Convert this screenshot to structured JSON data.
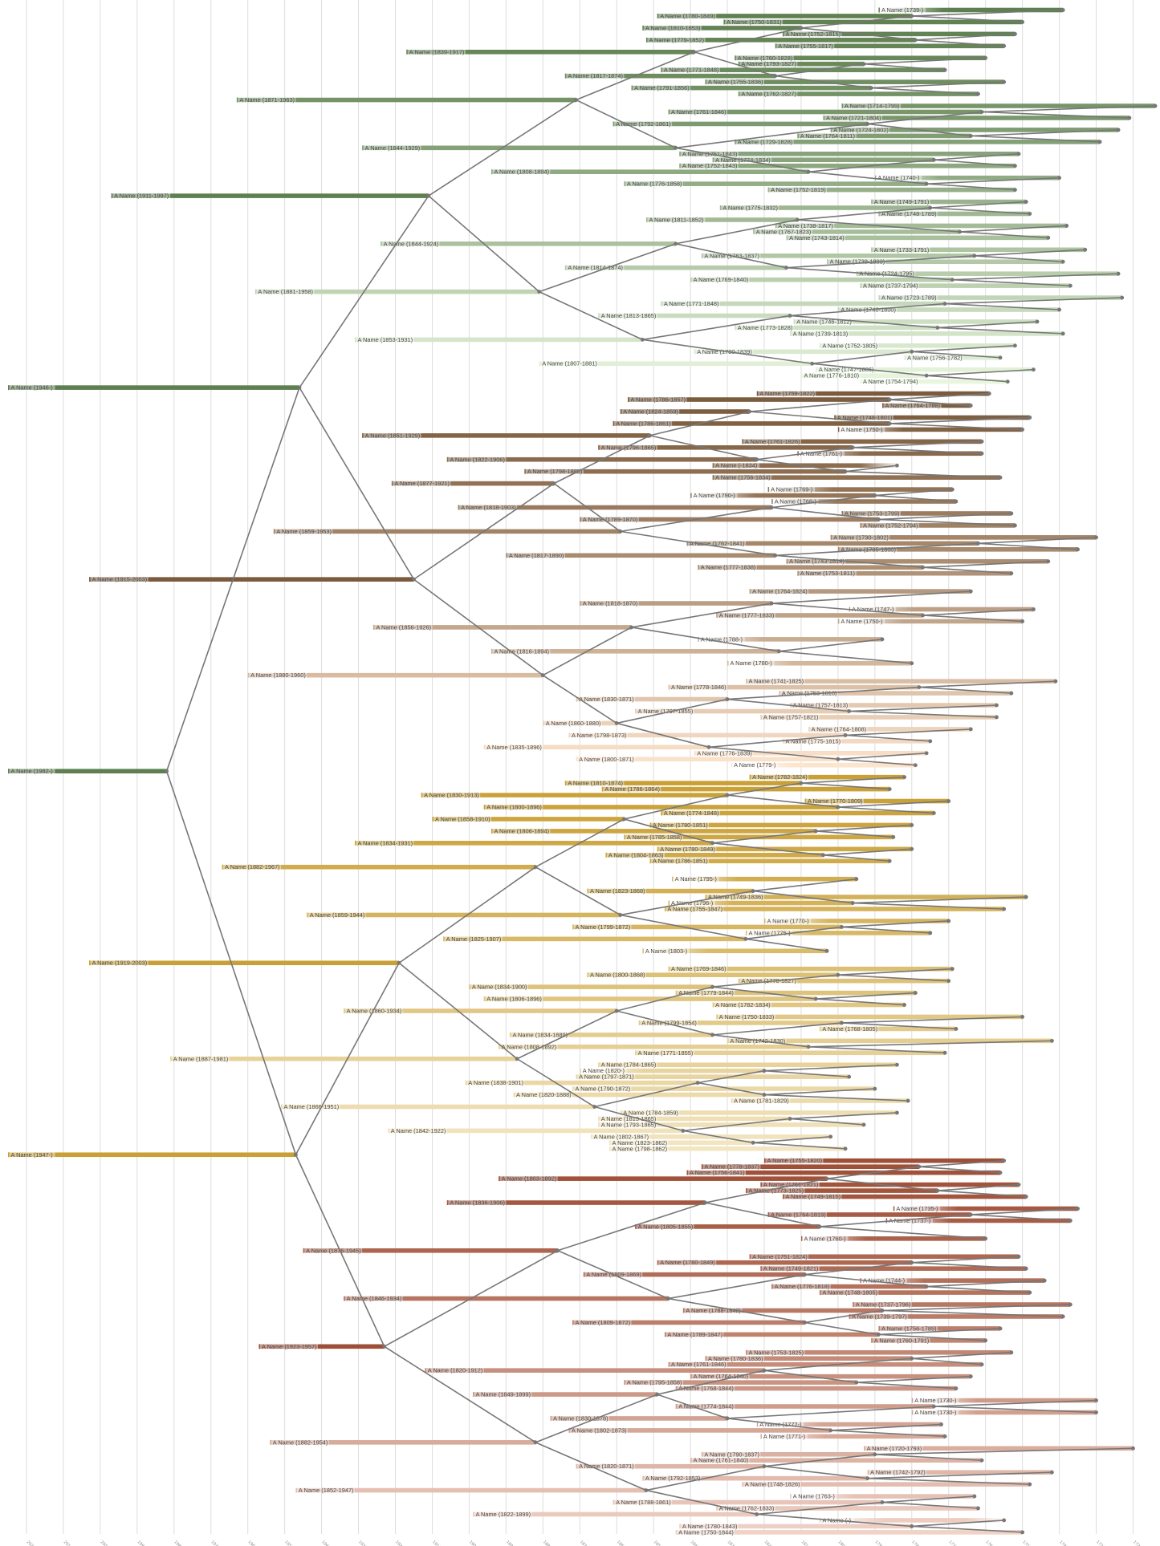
{
  "chart_data": {
    "type": "genealogy-timeline",
    "title": "",
    "axis": {
      "direction": "reversed (recent on the left)",
      "range": [
        2020,
        1720
      ],
      "ticks": [
        "2020",
        "2010",
        "2000",
        "1990",
        "1980",
        "1970",
        "1960",
        "1950",
        "1940",
        "1930",
        "1920",
        "1910",
        "1900",
        "1890",
        "1880",
        "1870",
        "1860",
        "1850",
        "1840",
        "1830",
        "1820",
        "1810",
        "1800",
        "1790",
        "1780",
        "1770",
        "1760",
        "1750",
        "1740",
        "1730",
        "1720"
      ],
      "grid": true
    },
    "branch_colors": {
      "paternal_paternal": [
        "#5e7f4f",
        "#e8f6de"
      ],
      "paternal_maternal": [
        "#7b5b3d",
        "#fde4cc"
      ],
      "maternal_paternal": [
        "#c9a035",
        "#f3e6c3"
      ],
      "maternal_maternal": [
        "#9f4f37",
        "#f0d2c6"
      ]
    },
    "link_color": "#777777",
    "people": [
      "A Name (1739-)",
      "A Name (1780-1849)",
      "A Name (1750-1831)",
      "A Name (1810-1853)",
      "A Name (1752-1815)",
      "A Name (1779-1852)",
      "A Name (1755-1817)",
      "A Name (1839-1917)",
      "A Name (1760-1828)",
      "A Name (1793-1827)",
      "A Name (1771-1848)",
      "A Name (1817-1874)",
      "A Name (1755-1836)",
      "A Name (1791-1856)",
      "A Name (1762-1827)",
      "A Name (1871-1963)",
      "A Name (1714-1799)",
      "A Name (1761-1846)",
      "A Name (1721-1804)",
      "A Name (1792-1861)",
      "A Name (1724-1802)",
      "A Name (1764-1811)",
      "A Name (1729-1828)",
      "A Name (1844-1929)",
      "A Name (1751-1843)",
      "A Name (1774-1834)",
      "A Name (1752-1843)",
      "A Name (1808-1894)",
      "A Name (1740-)",
      "A Name (1776-1858)",
      "A Name (1752-1819)",
      "A Name (1911-1997)",
      "A Name (1749-1791)",
      "A Name (1775-1832)",
      "A Name (1748-1789)",
      "A Name (1811-1852)",
      "A Name (1738-1817)",
      "A Name (1767-1823)",
      "A Name (1743-1814)",
      "A Name (1844-1924)",
      "A Name (1733-1791)",
      "A Name (1763-1837)",
      "A Name (1739-1803)",
      "A Name (1814-1874)",
      "A Name (1724-1795)",
      "A Name (1769-1840)",
      "A Name (1737-1794)",
      "A Name (1881-1958)",
      "A Name (1723-1789)",
      "A Name (1771-1848)",
      "A Name (1740-1800)",
      "A Name (1813-1865)",
      "A Name (1746-1812)",
      "A Name (1773-1828)",
      "A Name (1739-1813)",
      "A Name (1853-1931)",
      "A Name (1752-1805)",
      "A Name (1780-1839)",
      "A Name (1756-1782)",
      "A Name (1807-1881)",
      "A Name (1747-1806)",
      "A Name (1776-1810)",
      "A Name (1754-1794)",
      "A Name (1946-)",
      "A Name (1759-1822)",
      "A Name (1786-1857)",
      "A Name (1764-1788)",
      "A Name (1824-1859)",
      "A Name (1748-1801)",
      "A Name (1786-1861)",
      "A Name (1750-)",
      "A Name (1851-1929)",
      "A Name (1761-1826)",
      "A Name (1796-1865)",
      "A Name (1761-)",
      "A Name (1822-1906)",
      "A Name (-1834)",
      "A Name (1798-1885)",
      "A Name (1756-1834)",
      "A Name (1877-1921)",
      "A Name (1769-)",
      "A Name (1790-)",
      "A Name (1768-)",
      "A Name (1818-1903)",
      "A Name (1753-1799)",
      "A Name (1789-1870)",
      "A Name (1752-1794)",
      "A Name (1859-1953)",
      "A Name (1730-1802)",
      "A Name (1762-1841)",
      "A Name (1735-1800)",
      "A Name (1817-1890)",
      "A Name (1743-1814)",
      "A Name (1777-1838)",
      "A Name (1753-1811)",
      "A Name (1915-2003)",
      null,
      "A Name (1764-1824)",
      null,
      "A Name (1818-1870)",
      "A Name (1747-)",
      "A Name (1777-1833)",
      "A Name (1750-)",
      "A Name (1856-1926)",
      null,
      "A Name (1788-)",
      null,
      "A Name (1816-1894)",
      null,
      "A Name (1780-)",
      null,
      "A Name (1880-1960)",
      "A Name (1741-1825)",
      "A Name (1778-1846)",
      "A Name (1753-1816)",
      "A Name (1830-1871)",
      "A Name (1757-1813)",
      "A Name (1797-1855)",
      "A Name (1757-1821)",
      "A Name (1860-1880)",
      "A Name (1764-1808)",
      "A Name (1798-1873)",
      "A Name (1775-1815)",
      "A Name (1835-1896)",
      "A Name (1776-1839)",
      "A Name (1800-1871)",
      "A Name (1779-)",
      "A Name (1982-)",
      "A Name (1782-1824)",
      "A Name (1810-1874)",
      "A Name (1786-1864)",
      "A Name (1830-1913)",
      "A Name (1770-1809)",
      "A Name (1800-1896)",
      "A Name (1774-1848)",
      "A Name (1858-1910)",
      "A Name (1780-1851)",
      "A Name (1806-1894)",
      "A Name (1785-1858)",
      "A Name (1834-1931)",
      "A Name (1780-1849)",
      "A Name (1804-1863)",
      "A Name (1786-1851)",
      "A Name (1882-1967)",
      null,
      "A Name (1795-)",
      null,
      "A Name (1823-1868)",
      "A Name (1749-1836)",
      "A Name (1796-)",
      "A Name (1755-1847)",
      "A Name (1859-1944)",
      "A Name (1770-)",
      "A Name (1799-1872)",
      "A Name (1775-)",
      "A Name (1825-1907)",
      null,
      "A Name (1803-)",
      null,
      "A Name (1919-2003)",
      "A Name (1769-1846)",
      "A Name (1800-1868)",
      "A Name (1770-1827)",
      "A Name (1834-1900)",
      "A Name (1779-1844)",
      "A Name (1806-1896)",
      "A Name (1782-1834)",
      "A Name (1860-1934)",
      "A Name (1750-1833)",
      "A Name (1799-1854)",
      "A Name (1768-1805)",
      "A Name (1834-1889)",
      "A Name (1742-1830)",
      "A Name (1808-1892)",
      "A Name (1771-1855)",
      "A Name (1887-1981)",
      "A Name (1784-1865)",
      "A Name (1820-)",
      "A Name (1797-1871)",
      "A Name (1838-1901)",
      "A Name (1790-1872)",
      "A Name (1820-1888)",
      "A Name (1781-1829)",
      "A Name (1866-1951)",
      "A Name (1784-1859)",
      "A Name (1813-1865)",
      "A Name (1793-1865)",
      "A Name (1842-1922)",
      "A Name (1802-1867)",
      "A Name (1823-1862)",
      "A Name (1798-1862)",
      "A Name (1947-)",
      "A Name (1755-1820)",
      "A Name (1778-1837)",
      "A Name (1756-1841)",
      "A Name (1803-1892)",
      "A Name (1751-1821)",
      "A Name (1773-1825)",
      "A Name (1749-1815)",
      "A Name (1836-1906)",
      "A Name (1735-)",
      "A Name (1764-1819)",
      "A Name (1737-)",
      "A Name (1805-1855)",
      null,
      "A Name (1760-)",
      null,
      "A Name (1876-1945)",
      "A Name (1751-1824)",
      "A Name (1780-1849)",
      "A Name (1749-1821)",
      "A Name (1809-1869)",
      "A Name (1744-)",
      "A Name (1776-1818)",
      "A Name (1748-1805)",
      "A Name (1846-1934)",
      "A Name (1737-1796)",
      "A Name (1788-1842)",
      "A Name (1739-1797)",
      "A Name (1809-1872)",
      "A Name (1756-1789)",
      "A Name (1789-1847)",
      "A Name (1760-1791)",
      "A Name (1923-1957)",
      "A Name (1753-1825)",
      "A Name (1780-1836)",
      "A Name (1761-1846)",
      "A Name (1820-1912)",
      "A Name (1764-1840)",
      "A Name (1795-1858)",
      "A Name (1768-1844)",
      "A Name (1849-1899)",
      "A Name (1730-)",
      "A Name (1774-1844)",
      "A Name (1730-)",
      "A Name (1830-1878)",
      "A Name (1772-)",
      "A Name (1802-1873)",
      "A Name (1771-)",
      "A Name (1882-1954)",
      "A Name (1720-1793)",
      "A Name (1790-1837)",
      "A Name (1761-1840)",
      "A Name (1820-1871)",
      "A Name (1742-1792)",
      "A Name (1792-1853)",
      "A Name (1748-1826)",
      "A Name (1852-1947)",
      "A Name (1763-)",
      "A Name (1788-1861)",
      "A Name (1762-1833)",
      "A Name (1822-1899)",
      "A Name (-)",
      "A Name (1780-1843)",
      "A Name (1750-1844)"
    ]
  }
}
